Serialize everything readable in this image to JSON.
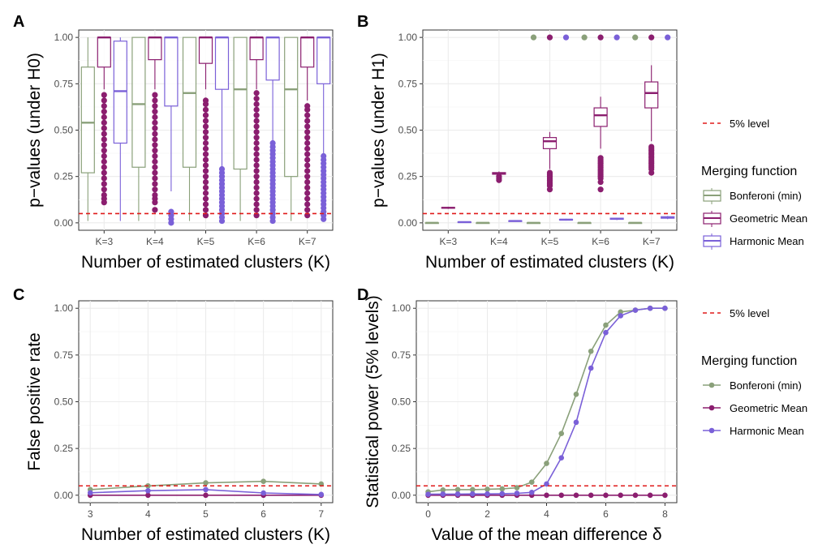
{
  "colors": {
    "bonferroni": "#8aa07a",
    "geometric": "#8b1e6f",
    "harmonic": "#7a60d8",
    "reference": "#e01a1a"
  },
  "legend_top": {
    "ref_label": "5% level",
    "title": "Merging function",
    "entries": [
      "Bonferoni (min)",
      "Geometric Mean",
      "Harmonic Mean"
    ]
  },
  "legend_bottom": {
    "ref_label": "5% level",
    "title": "Merging function",
    "entries": [
      "Bonferoni (min)",
      "Geometric Mean",
      "Harmonic Mean"
    ]
  },
  "chart_data": [
    {
      "panel": "A",
      "type": "box",
      "xlabel": "Number of estimated clusters (K)",
      "ylabel": "p−values (under H0)",
      "categories": [
        "K=3",
        "K=4",
        "K=5",
        "K=6",
        "K=7"
      ],
      "yticks": [
        "0.00",
        "0.25",
        "0.50",
        "0.75",
        "1.00"
      ],
      "ylim": [
        -0.04,
        1.04
      ],
      "reference_line": 0.05,
      "series": [
        {
          "key": "bonferroni",
          "boxes": [
            {
              "min": 0.01,
              "q1": 0.27,
              "median": 0.54,
              "q3": 0.84,
              "max": 1.0,
              "outliers": []
            },
            {
              "min": 0.01,
              "q1": 0.3,
              "median": 0.64,
              "q3": 1.0,
              "max": 1.0,
              "outliers": []
            },
            {
              "min": 0.01,
              "q1": 0.3,
              "median": 0.7,
              "q3": 1.0,
              "max": 1.0,
              "outliers": []
            },
            {
              "min": 0.01,
              "q1": 0.29,
              "median": 0.72,
              "q3": 1.0,
              "max": 1.0,
              "outliers": []
            },
            {
              "min": 0.01,
              "q1": 0.25,
              "median": 0.72,
              "q3": 1.0,
              "max": 1.0,
              "outliers": []
            }
          ]
        },
        {
          "key": "geometric",
          "boxes": [
            {
              "min": 0.72,
              "q1": 0.84,
              "median": 1.0,
              "q3": 1.0,
              "max": 1.0,
              "outliers": [
                0.11,
                0.13,
                0.15,
                0.18,
                0.21,
                0.24,
                0.27,
                0.3,
                0.33,
                0.36,
                0.39,
                0.42,
                0.45,
                0.48,
                0.51,
                0.54,
                0.57,
                0.6,
                0.63,
                0.66,
                0.69
              ]
            },
            {
              "min": 0.72,
              "q1": 0.88,
              "median": 1.0,
              "q3": 1.0,
              "max": 1.0,
              "outliers": [
                0.07,
                0.11,
                0.13,
                0.15,
                0.18,
                0.21,
                0.24,
                0.27,
                0.3,
                0.33,
                0.36,
                0.39,
                0.42,
                0.45,
                0.48,
                0.51,
                0.54,
                0.57,
                0.6,
                0.63,
                0.66,
                0.69
              ]
            },
            {
              "min": 0.72,
              "q1": 0.86,
              "median": 1.0,
              "q3": 1.0,
              "max": 1.0,
              "outliers": [
                0.04,
                0.07,
                0.1,
                0.13,
                0.16,
                0.19,
                0.22,
                0.25,
                0.28,
                0.31,
                0.34,
                0.37,
                0.4,
                0.43,
                0.46,
                0.49,
                0.52,
                0.55,
                0.58,
                0.61,
                0.64,
                0.66
              ]
            },
            {
              "min": 0.72,
              "q1": 0.88,
              "median": 1.0,
              "q3": 1.0,
              "max": 1.0,
              "outliers": [
                0.04,
                0.07,
                0.1,
                0.13,
                0.16,
                0.19,
                0.22,
                0.25,
                0.28,
                0.31,
                0.34,
                0.37,
                0.4,
                0.43,
                0.46,
                0.49,
                0.52,
                0.55,
                0.58,
                0.61,
                0.64,
                0.67,
                0.7
              ]
            },
            {
              "min": 0.66,
              "q1": 0.84,
              "median": 1.0,
              "q3": 1.0,
              "max": 1.0,
              "outliers": [
                0.04,
                0.07,
                0.1,
                0.13,
                0.16,
                0.19,
                0.22,
                0.25,
                0.28,
                0.31,
                0.34,
                0.37,
                0.4,
                0.43,
                0.46,
                0.49,
                0.52,
                0.55,
                0.58,
                0.61,
                0.63
              ]
            }
          ]
        },
        {
          "key": "harmonic",
          "boxes": [
            {
              "min": 0.01,
              "q1": 0.43,
              "median": 0.71,
              "q3": 0.98,
              "max": 1.0,
              "outliers": []
            },
            {
              "min": 0.17,
              "q1": 0.63,
              "median": 1.0,
              "q3": 1.0,
              "max": 1.0,
              "outliers": [
                0.0,
                0.02,
                0.04,
                0.06
              ]
            },
            {
              "min": 0.3,
              "q1": 0.72,
              "median": 1.0,
              "q3": 1.0,
              "max": 1.0,
              "outliers": [
                0.01,
                0.03,
                0.05,
                0.07,
                0.09,
                0.11,
                0.13,
                0.15,
                0.17,
                0.19,
                0.21,
                0.23,
                0.25,
                0.27,
                0.29
              ]
            },
            {
              "min": 0.44,
              "q1": 0.77,
              "median": 1.0,
              "q3": 1.0,
              "max": 1.0,
              "outliers": [
                0.01,
                0.03,
                0.05,
                0.07,
                0.09,
                0.11,
                0.13,
                0.15,
                0.17,
                0.19,
                0.21,
                0.23,
                0.25,
                0.27,
                0.29,
                0.31,
                0.33,
                0.35,
                0.37,
                0.39,
                0.41,
                0.43
              ]
            },
            {
              "min": 0.37,
              "q1": 0.75,
              "median": 1.0,
              "q3": 1.0,
              "max": 1.0,
              "outliers": [
                0.02,
                0.04,
                0.06,
                0.08,
                0.1,
                0.12,
                0.14,
                0.16,
                0.18,
                0.2,
                0.22,
                0.24,
                0.26,
                0.28,
                0.3,
                0.32,
                0.34,
                0.36
              ]
            }
          ]
        }
      ]
    },
    {
      "panel": "B",
      "type": "box",
      "xlabel": "Number of estimated clusters (K)",
      "ylabel": "p−values (under H1)",
      "categories": [
        "K=3",
        "K=4",
        "K=5",
        "K=6",
        "K=7"
      ],
      "yticks": [
        "0.00",
        "0.25",
        "0.50",
        "0.75",
        "1.00"
      ],
      "ylim": [
        -0.04,
        1.04
      ],
      "reference_line": 0.05,
      "series": [
        {
          "key": "bonferroni",
          "boxes": [
            {
              "min": 0.0,
              "q1": 0.0,
              "median": 0.0,
              "q3": 0.0,
              "max": 0.0,
              "outliers": []
            },
            {
              "min": 0.0,
              "q1": 0.0,
              "median": 0.0,
              "q3": 0.0,
              "max": 0.0,
              "outliers": []
            },
            {
              "min": 0.0,
              "q1": 0.0,
              "median": 0.0,
              "q3": 0.0,
              "max": 0.0,
              "outliers": [
                1.0
              ]
            },
            {
              "min": 0.0,
              "q1": 0.0,
              "median": 0.0,
              "q3": 0.0,
              "max": 0.0,
              "outliers": [
                1.0
              ]
            },
            {
              "min": 0.0,
              "q1": 0.0,
              "median": 0.0,
              "q3": 0.0,
              "max": 0.0,
              "outliers": [
                1.0
              ]
            }
          ]
        },
        {
          "key": "geometric",
          "boxes": [
            {
              "min": 0.075,
              "q1": 0.079,
              "median": 0.081,
              "q3": 0.083,
              "max": 0.087,
              "outliers": []
            },
            {
              "min": 0.255,
              "q1": 0.262,
              "median": 0.267,
              "q3": 0.271,
              "max": 0.277,
              "outliers": [
                0.23,
                0.24,
                0.25
              ]
            },
            {
              "min": 0.29,
              "q1": 0.4,
              "median": 0.44,
              "q3": 0.46,
              "max": 0.49,
              "outliers": [
                0.18,
                0.2,
                0.21,
                0.22,
                0.23,
                0.24,
                0.25,
                0.26,
                0.27,
                1.0
              ]
            },
            {
              "min": 0.4,
              "q1": 0.52,
              "median": 0.58,
              "q3": 0.62,
              "max": 0.68,
              "outliers": [
                0.18,
                0.22,
                0.24,
                0.25,
                0.26,
                0.27,
                0.28,
                0.29,
                0.3,
                0.31,
                0.32,
                0.33,
                0.34,
                0.35,
                1.0
              ]
            },
            {
              "min": 0.44,
              "q1": 0.62,
              "median": 0.7,
              "q3": 0.76,
              "max": 0.85,
              "outliers": [
                0.27,
                0.29,
                0.3,
                0.31,
                0.32,
                0.33,
                0.34,
                0.35,
                0.36,
                0.37,
                0.38,
                0.39,
                0.4,
                0.41,
                1.0
              ]
            }
          ]
        },
        {
          "key": "harmonic",
          "boxes": [
            {
              "min": 0.0,
              "q1": 0.003,
              "median": 0.004,
              "q3": 0.005,
              "max": 0.006,
              "outliers": []
            },
            {
              "min": 0.006,
              "q1": 0.008,
              "median": 0.01,
              "q3": 0.011,
              "max": 0.013,
              "outliers": []
            },
            {
              "min": 0.012,
              "q1": 0.015,
              "median": 0.017,
              "q3": 0.019,
              "max": 0.022,
              "outliers": [
                1.0
              ]
            },
            {
              "min": 0.015,
              "q1": 0.019,
              "median": 0.022,
              "q3": 0.025,
              "max": 0.028,
              "outliers": [
                1.0
              ]
            },
            {
              "min": 0.02,
              "q1": 0.025,
              "median": 0.029,
              "q3": 0.033,
              "max": 0.037,
              "outliers": [
                1.0
              ]
            }
          ]
        }
      ]
    },
    {
      "panel": "C",
      "type": "line",
      "xlabel": "Number of estimated clusters (K)",
      "ylabel": "False positive rate",
      "x": [
        3,
        4,
        5,
        6,
        7
      ],
      "xticks": [
        3,
        4,
        5,
        6,
        7
      ],
      "xlim": [
        2.8,
        7.2
      ],
      "yticks": [
        "0.00",
        "0.25",
        "0.50",
        "0.75",
        "1.00"
      ],
      "ylim": [
        -0.04,
        1.04
      ],
      "reference_line": 0.05,
      "series": [
        {
          "key": "bonferroni",
          "values": [
            0.03,
            0.05,
            0.066,
            0.074,
            0.06
          ]
        },
        {
          "key": "geometric",
          "values": [
            0.0,
            0.0,
            0.0,
            0.0,
            0.0
          ]
        },
        {
          "key": "harmonic",
          "values": [
            0.013,
            0.024,
            0.03,
            0.012,
            0.004
          ]
        }
      ]
    },
    {
      "panel": "D",
      "type": "line",
      "xlabel": "Value of the mean difference δ",
      "ylabel": "Statistical power (5% levels)",
      "x": [
        0,
        0.5,
        1,
        1.5,
        2,
        2.5,
        3,
        3.5,
        4,
        4.5,
        5,
        5.5,
        6,
        6.5,
        7,
        7.5,
        8
      ],
      "xticks": [
        0,
        2,
        4,
        6,
        8
      ],
      "xlim": [
        -0.4,
        8.4
      ],
      "yticks": [
        "0.00",
        "0.25",
        "0.50",
        "0.75",
        "1.00"
      ],
      "ylim": [
        -0.04,
        1.04
      ],
      "reference_line": 0.05,
      "series": [
        {
          "key": "bonferroni",
          "values": [
            0.018,
            0.028,
            0.03,
            0.03,
            0.032,
            0.034,
            0.04,
            0.07,
            0.17,
            0.33,
            0.54,
            0.77,
            0.91,
            0.98,
            0.99,
            1.0,
            1.0
          ]
        },
        {
          "key": "geometric",
          "values": [
            0,
            0,
            0,
            0,
            0,
            0,
            0,
            0,
            0,
            0,
            0,
            0,
            0,
            0,
            0,
            0,
            0
          ]
        },
        {
          "key": "harmonic",
          "values": [
            0.005,
            0.006,
            0.006,
            0.007,
            0.007,
            0.008,
            0.01,
            0.015,
            0.06,
            0.2,
            0.39,
            0.68,
            0.87,
            0.96,
            0.99,
            1.0,
            1.0
          ]
        }
      ]
    }
  ]
}
